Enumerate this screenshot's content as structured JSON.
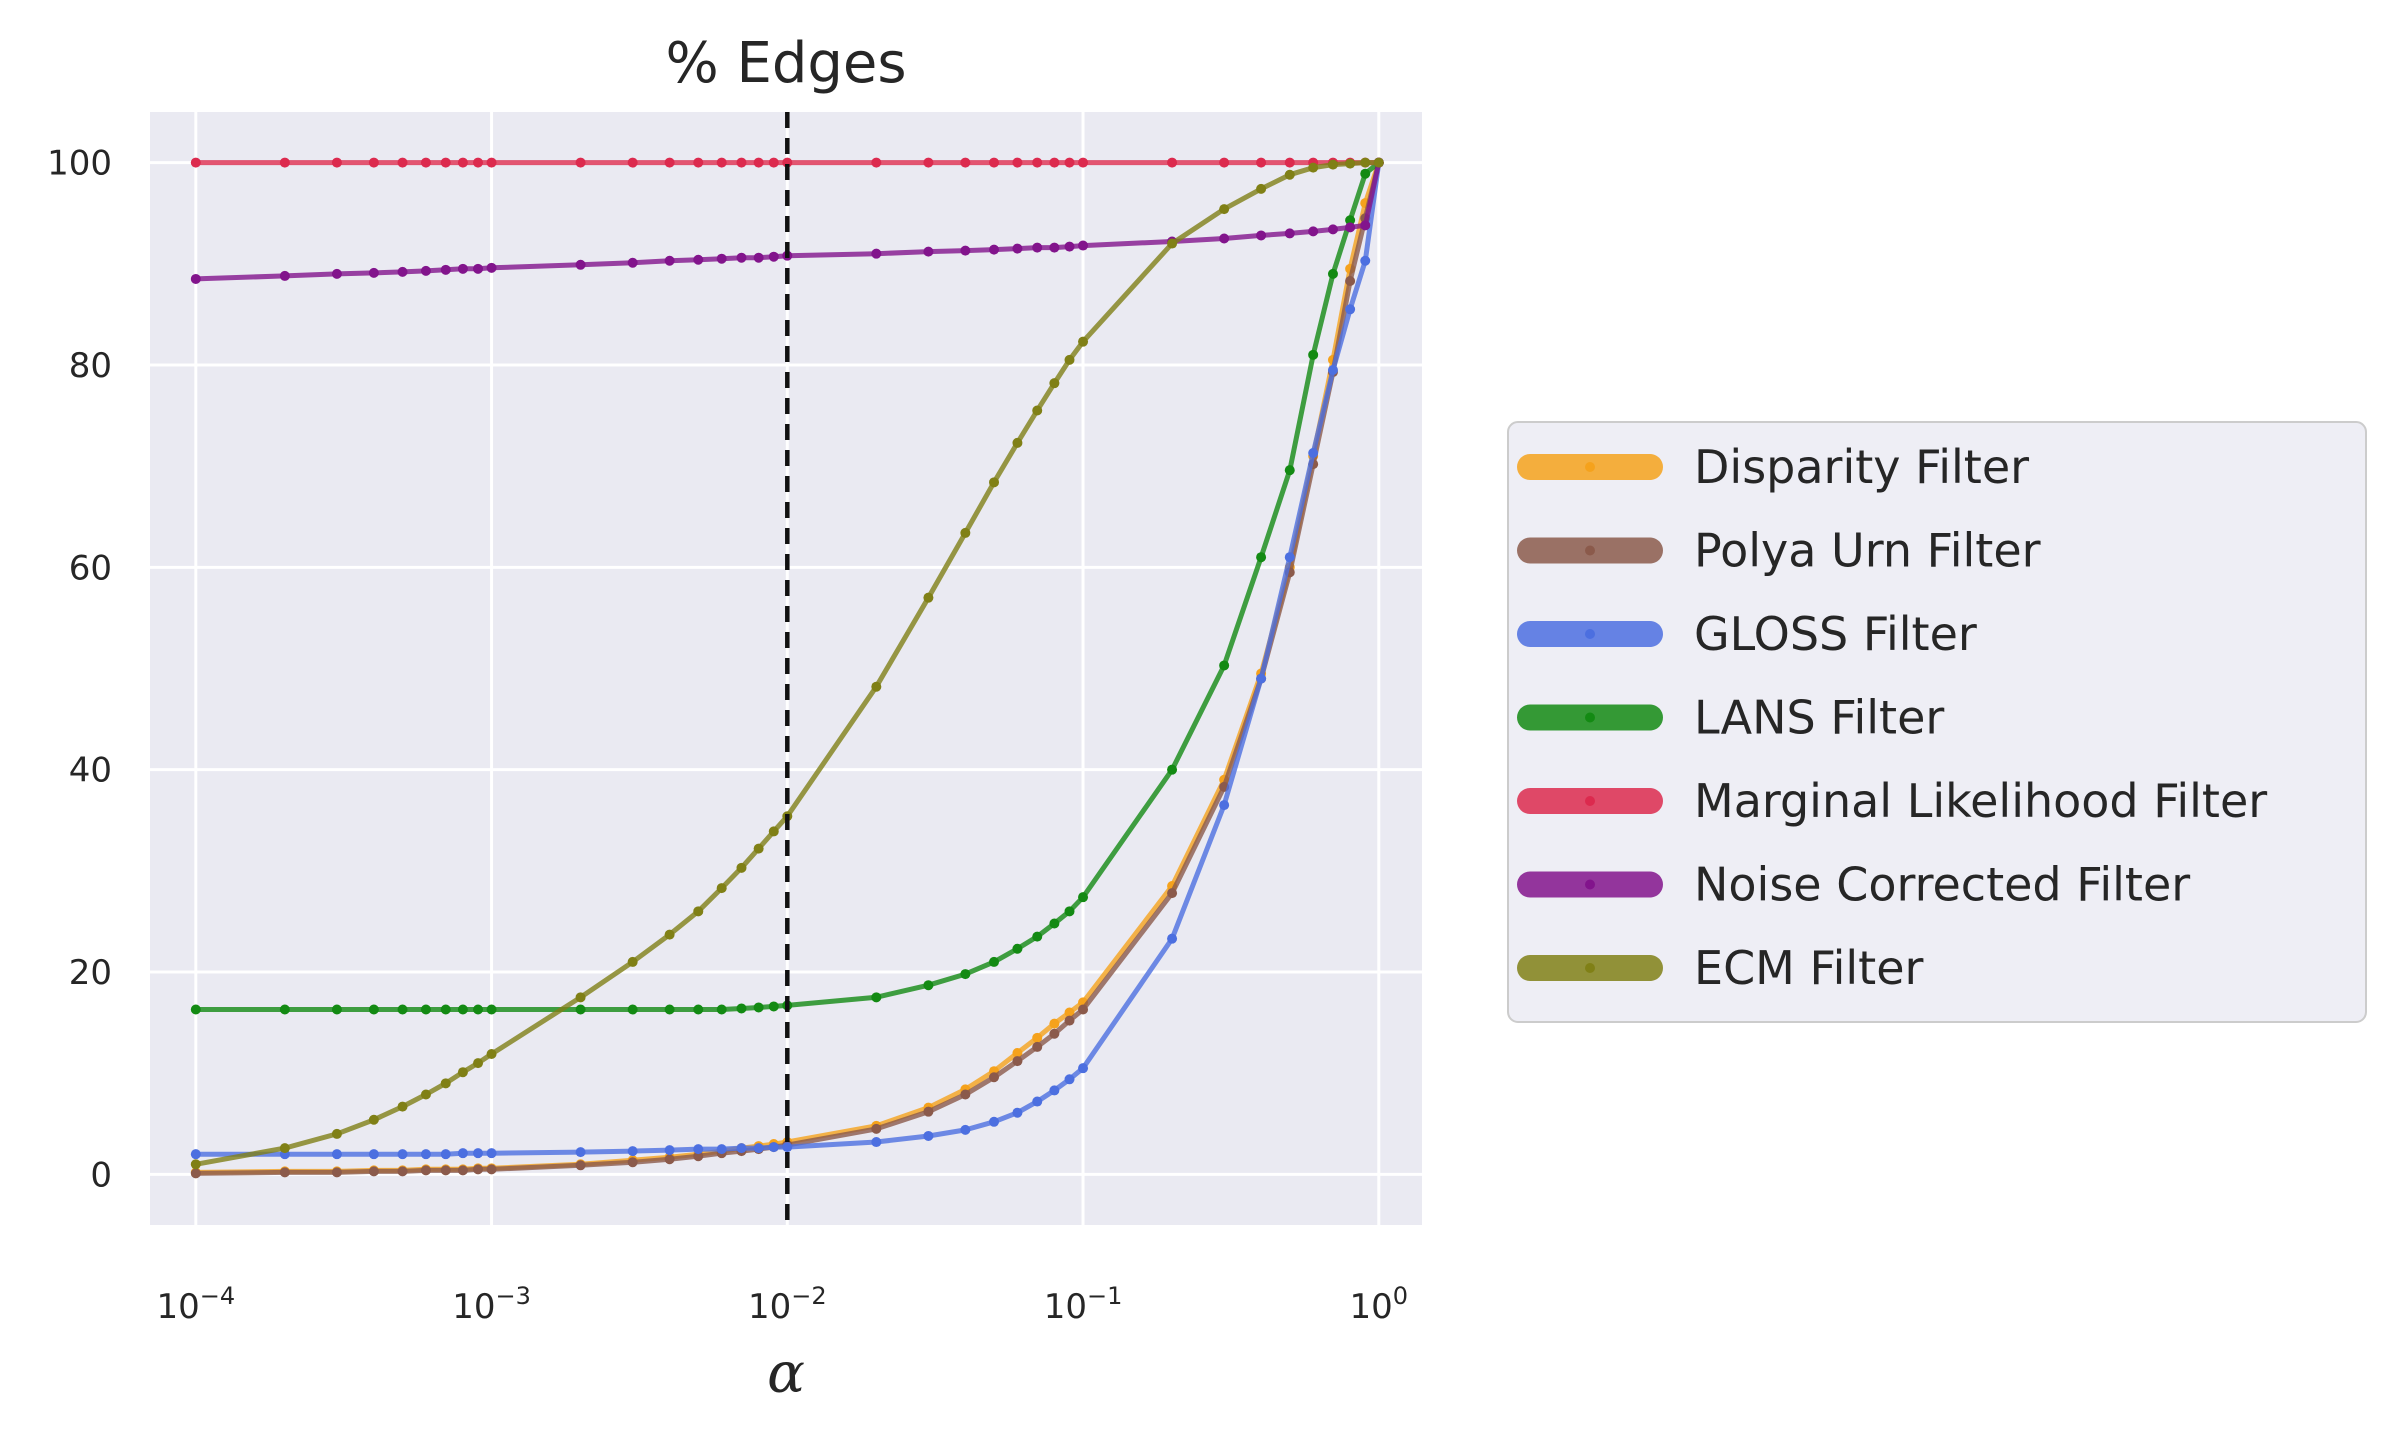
{
  "chart_data": {
    "type": "line",
    "title": "% Edges",
    "xlabel": "α",
    "ylabel": "",
    "xscale": "log",
    "xlim": [
      7e-05,
      1.4
    ],
    "ylim": [
      -5,
      105
    ],
    "grid": true,
    "legend_position": "right",
    "x_ticks": [
      {
        "value": 0.0001,
        "base": "10",
        "exp": "−4"
      },
      {
        "value": 0.001,
        "base": "10",
        "exp": "−3"
      },
      {
        "value": 0.01,
        "base": "10",
        "exp": "−2"
      },
      {
        "value": 0.1,
        "base": "10",
        "exp": "−1"
      },
      {
        "value": 1,
        "base": "10",
        "exp": "0"
      }
    ],
    "y_ticks": [
      0,
      20,
      40,
      60,
      80,
      100
    ],
    "vline": {
      "x": 0.01,
      "style": "dashed",
      "color": "#111111"
    },
    "x": [
      0.0001,
      0.0002,
      0.0003,
      0.0004,
      0.0005,
      0.0006,
      0.0007,
      0.0008,
      0.0009,
      0.001,
      0.002,
      0.003,
      0.004,
      0.005,
      0.006,
      0.007,
      0.008,
      0.009,
      0.01,
      0.02,
      0.03,
      0.04,
      0.05,
      0.06,
      0.07,
      0.08,
      0.09,
      0.1,
      0.2,
      0.3,
      0.4,
      0.5,
      0.6,
      0.7,
      0.8,
      0.9,
      1.0
    ],
    "series": [
      {
        "name": "Disparity Filter",
        "color": "#f5a21c",
        "values": [
          0.2,
          0.3,
          0.3,
          0.4,
          0.4,
          0.5,
          0.5,
          0.5,
          0.6,
          0.6,
          1.0,
          1.4,
          1.7,
          2.0,
          2.3,
          2.6,
          2.8,
          3.0,
          3.2,
          4.8,
          6.6,
          8.4,
          10.2,
          12.0,
          13.5,
          14.9,
          16.0,
          17.0,
          28.5,
          39.0,
          49.5,
          60.0,
          71.0,
          80.5,
          89.5,
          96.0,
          100
        ]
      },
      {
        "name": "Polya Urn Filter",
        "color": "#8b5a4b",
        "values": [
          0.1,
          0.2,
          0.2,
          0.3,
          0.3,
          0.4,
          0.4,
          0.4,
          0.5,
          0.5,
          0.9,
          1.2,
          1.5,
          1.8,
          2.1,
          2.3,
          2.5,
          2.7,
          2.9,
          4.5,
          6.2,
          7.9,
          9.6,
          11.2,
          12.6,
          13.9,
          15.2,
          16.3,
          27.8,
          38.3,
          49.0,
          59.5,
          70.2,
          79.3,
          88.3,
          94.5,
          100
        ]
      },
      {
        "name": "GLOSS Filter",
        "color": "#4c6fe0",
        "values": [
          2.0,
          2.0,
          2.0,
          2.0,
          2.0,
          2.0,
          2.0,
          2.1,
          2.1,
          2.1,
          2.2,
          2.3,
          2.4,
          2.5,
          2.5,
          2.6,
          2.6,
          2.7,
          2.7,
          3.2,
          3.8,
          4.4,
          5.2,
          6.1,
          7.2,
          8.3,
          9.4,
          10.5,
          23.3,
          36.5,
          49.0,
          61.0,
          71.3,
          79.5,
          85.5,
          90.3,
          100
        ]
      },
      {
        "name": "LANS Filter",
        "color": "#138a13",
        "values": [
          16.3,
          16.3,
          16.3,
          16.3,
          16.3,
          16.3,
          16.3,
          16.3,
          16.3,
          16.3,
          16.3,
          16.3,
          16.3,
          16.3,
          16.3,
          16.4,
          16.5,
          16.6,
          16.7,
          17.5,
          18.7,
          19.8,
          21.0,
          22.3,
          23.5,
          24.8,
          26.0,
          27.4,
          40.0,
          50.3,
          61.0,
          69.6,
          81.0,
          89.0,
          94.3,
          98.9,
          100
        ]
      },
      {
        "name": "Marginal Likelihood Filter",
        "color": "#dc2a4e",
        "values": [
          100,
          100,
          100,
          100,
          100,
          100,
          100,
          100,
          100,
          100,
          100,
          100,
          100,
          100,
          100,
          100,
          100,
          100,
          100,
          100,
          100,
          100,
          100,
          100,
          100,
          100,
          100,
          100,
          100,
          100,
          100,
          100,
          100,
          100,
          100,
          100,
          100
        ]
      },
      {
        "name": "Noise Corrected Filter",
        "color": "#82148c",
        "values": [
          88.5,
          88.8,
          89.0,
          89.1,
          89.2,
          89.3,
          89.4,
          89.5,
          89.5,
          89.6,
          89.9,
          90.1,
          90.3,
          90.4,
          90.5,
          90.6,
          90.6,
          90.7,
          90.8,
          91.0,
          91.2,
          91.3,
          91.4,
          91.5,
          91.6,
          91.6,
          91.7,
          91.8,
          92.2,
          92.5,
          92.8,
          93.0,
          93.2,
          93.4,
          93.6,
          93.8,
          100
        ]
      },
      {
        "name": "ECM Filter",
        "color": "#808016",
        "values": [
          1.0,
          2.6,
          4.0,
          5.4,
          6.7,
          7.9,
          9.0,
          10.1,
          11.0,
          11.9,
          17.5,
          21.0,
          23.7,
          26.0,
          28.3,
          30.3,
          32.2,
          33.9,
          35.4,
          48.2,
          57.0,
          63.4,
          68.4,
          72.3,
          75.5,
          78.2,
          80.5,
          82.3,
          92.0,
          95.4,
          97.4,
          98.8,
          99.5,
          99.8,
          99.9,
          100,
          100
        ]
      }
    ]
  }
}
